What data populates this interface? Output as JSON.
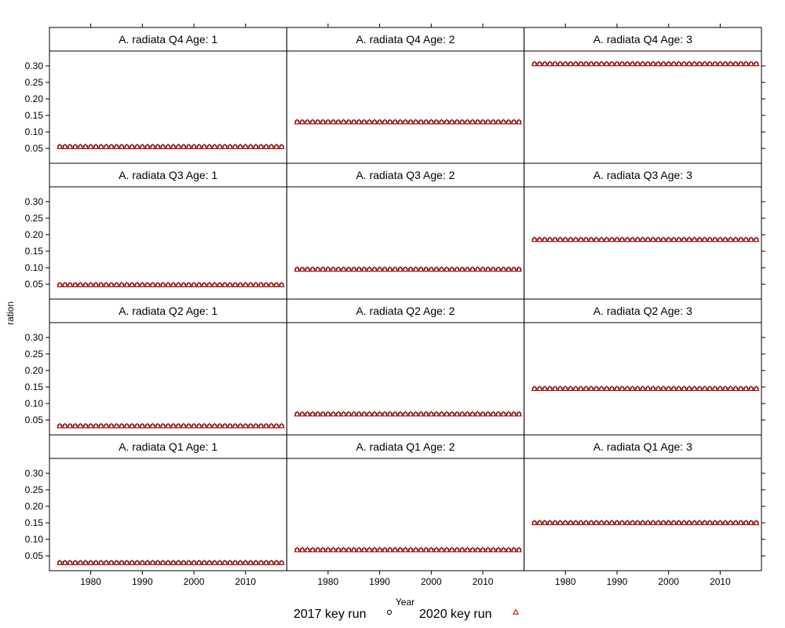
{
  "chart_data": {
    "type": "scatter",
    "xlabel": "Year",
    "ylabel": "ration",
    "xlim": [
      1972,
      2018
    ],
    "ylim": [
      0.005,
      0.345
    ],
    "x_ticks": [
      1980,
      1990,
      2000,
      2010
    ],
    "y_ticks": [
      0.05,
      0.1,
      0.15,
      0.2,
      0.25,
      0.3
    ],
    "y_tick_labels": [
      "0.05",
      "0.10",
      "0.15",
      "0.20",
      "0.25",
      "0.30"
    ],
    "year_start": 1974,
    "year_end": 2017,
    "legend": [
      {
        "label": "2017 key run",
        "symbol": "circle",
        "color": "#000000"
      },
      {
        "label": "2020 key run",
        "symbol": "triangle",
        "color": "#cc0000"
      }
    ],
    "panels": [
      {
        "title": "A. radiata Q4 Age: 1",
        "value": 0.055
      },
      {
        "title": "A. radiata Q4 Age: 2",
        "value": 0.13
      },
      {
        "title": "A. radiata Q4 Age: 3",
        "value": 0.306
      },
      {
        "title": "A. radiata Q3 Age: 1",
        "value": 0.048
      },
      {
        "title": "A. radiata Q3 Age: 2",
        "value": 0.095
      },
      {
        "title": "A. radiata Q3 Age: 3",
        "value": 0.185
      },
      {
        "title": "A. radiata Q2 Age: 1",
        "value": 0.032
      },
      {
        "title": "A. radiata Q2 Age: 2",
        "value": 0.068
      },
      {
        "title": "A. radiata Q2 Age: 3",
        "value": 0.145
      },
      {
        "title": "A. radiata Q1 Age: 1",
        "value": 0.029
      },
      {
        "title": "A. radiata Q1 Age: 2",
        "value": 0.068
      },
      {
        "title": "A. radiata Q1 Age: 3",
        "value": 0.15
      }
    ]
  }
}
